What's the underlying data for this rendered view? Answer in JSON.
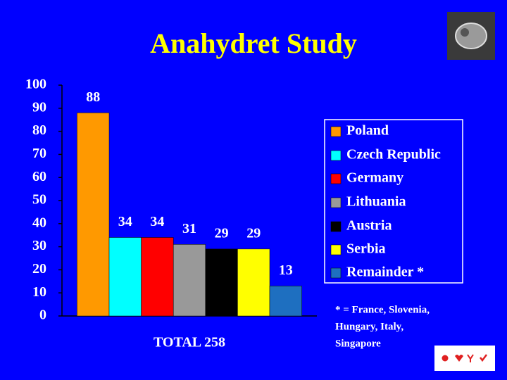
{
  "chart_data": {
    "type": "bar",
    "title": "Anahydret Study",
    "categories": [
      "TOTAL 258"
    ],
    "series": [
      {
        "name": "Poland",
        "color": "#ff9900",
        "values": [
          88
        ]
      },
      {
        "name": "Czech Republic",
        "color": "#00ffff",
        "values": [
          34
        ]
      },
      {
        "name": "Germany",
        "color": "#ff0000",
        "values": [
          34
        ]
      },
      {
        "name": "Lithuania",
        "color": "#999999",
        "values": [
          31
        ]
      },
      {
        "name": "Austria",
        "color": "#000000",
        "values": [
          29
        ]
      },
      {
        "name": "Serbia",
        "color": "#ffff00",
        "values": [
          29
        ]
      },
      {
        "name": "Remainder *",
        "color": "#1e6fc0",
        "values": [
          13
        ]
      }
    ],
    "ylim": [
      0,
      100
    ],
    "yticks": [
      0,
      10,
      20,
      30,
      40,
      50,
      60,
      70,
      80,
      90,
      100
    ],
    "legend": "right",
    "note": [
      "* = France, Slovenia,",
      "Hungary, Italy,",
      "Singapore"
    ]
  }
}
